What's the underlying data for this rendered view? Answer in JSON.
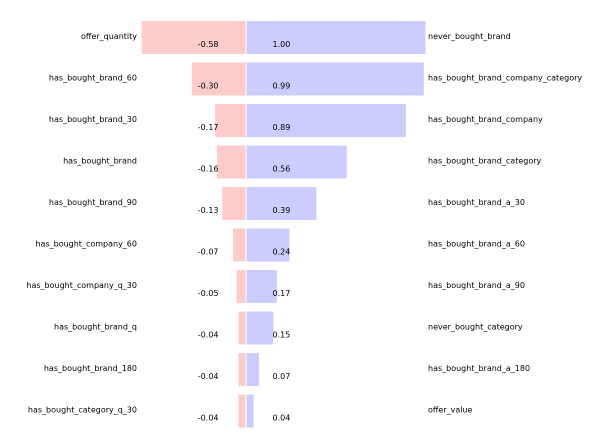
{
  "chart_data": {
    "type": "bar",
    "grid": false,
    "legend": "none",
    "negative": {
      "categories": [
        "offer_quantity",
        "has_bought_brand_60",
        "has_bought_brand_30",
        "has_bought_brand",
        "has_bought_brand_90",
        "has_bought_company_60",
        "has_bought_company_q_30",
        "has_bought_brand_q",
        "has_bought_brand_180",
        "has_bought_category_q_30"
      ],
      "values": [
        -0.58,
        -0.3,
        -0.17,
        -0.16,
        -0.13,
        -0.07,
        -0.05,
        -0.04,
        -0.04,
        -0.04
      ],
      "labels": [
        "-0.58",
        "-0.30",
        "-0.17",
        "-0.16",
        "-0.13",
        "-0.07",
        "-0.05",
        "-0.04",
        "-0.04",
        "-0.04"
      ],
      "color": "#ffcccc"
    },
    "positive": {
      "categories": [
        "never_bought_brand",
        "has_bought_brand_company_category",
        "has_bought_brand_company",
        "has_bought_brand_category",
        "has_bought_brand_a_30",
        "has_bought_brand_a_60",
        "has_bought_brand_a_90",
        "never_bought_category",
        "has_bought_brand_a_180",
        "offer_value"
      ],
      "values": [
        1.0,
        0.99,
        0.89,
        0.56,
        0.39,
        0.24,
        0.17,
        0.15,
        0.07,
        0.04
      ],
      "labels": [
        "1.00",
        "0.99",
        "0.89",
        "0.56",
        "0.39",
        "0.24",
        "0.17",
        "0.15",
        "0.07",
        "0.04"
      ],
      "color": "#ccccff"
    }
  }
}
